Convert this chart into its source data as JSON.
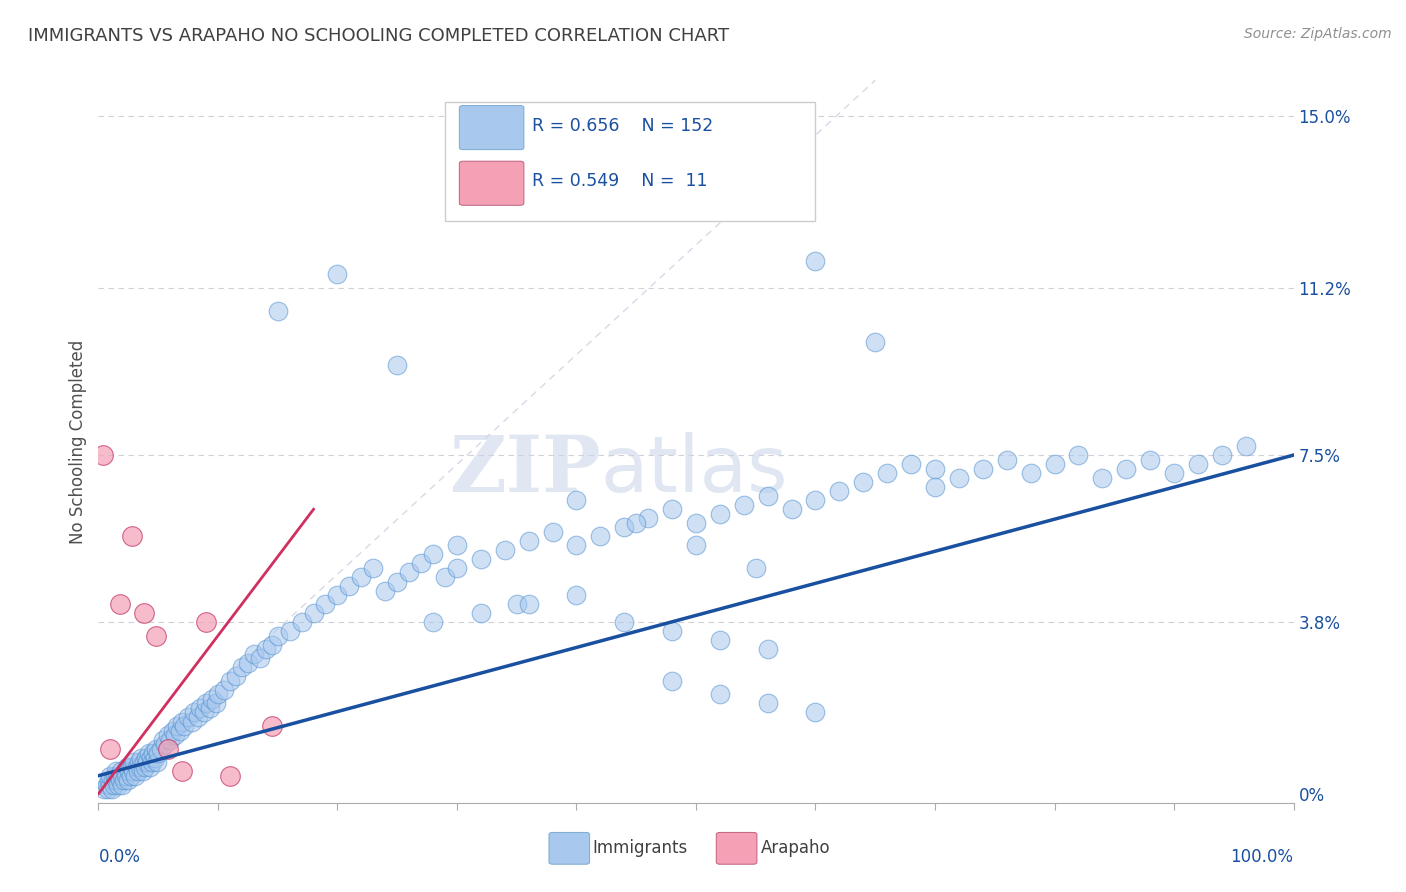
{
  "title": "IMMIGRANTS VS ARAPAHO NO SCHOOLING COMPLETED CORRELATION CHART",
  "source_text": "Source: ZipAtlas.com",
  "ylabel": "No Schooling Completed",
  "ytick_labels": [
    "0%",
    "3.8%",
    "7.5%",
    "11.2%",
    "15.0%"
  ],
  "ytick_values": [
    0.0,
    0.038,
    0.075,
    0.112,
    0.15
  ],
  "legend_blue_r": "R = 0.656",
  "legend_blue_n": "N = 152",
  "legend_pink_r": "R = 0.549",
  "legend_pink_n": "N =  11",
  "legend_label_blue": "Immigrants",
  "legend_label_pink": "Arapaho",
  "watermark_ZIP": "ZIP",
  "watermark_atlas": "atlas",
  "blue_color": "#A8C8EE",
  "pink_color": "#F4A0B5",
  "blue_line_color": "#1A50A0",
  "pink_line_color": "#D03060",
  "ref_line_color": "#D8D8E8",
  "grid_color": "#D0D0D8",
  "title_color": "#404040",
  "axis_label_color": "#505050",
  "tick_label_color": "#1A50A0",
  "source_color": "#909090",
  "legend_text_color": "#1A50A0",
  "xlim": [
    0.0,
    1.0
  ],
  "ylim": [
    -0.002,
    0.158
  ],
  "blue_line_x0": 0.0,
  "blue_line_y0": 0.004,
  "blue_line_x1": 1.0,
  "blue_line_y1": 0.075,
  "pink_line_x0": 0.0,
  "pink_line_y0": 0.0,
  "pink_line_x1": 0.18,
  "pink_line_y1": 0.063,
  "immigrants_x": [
    0.005,
    0.007,
    0.008,
    0.009,
    0.01,
    0.01,
    0.011,
    0.012,
    0.013,
    0.014,
    0.015,
    0.015,
    0.016,
    0.017,
    0.018,
    0.019,
    0.02,
    0.02,
    0.021,
    0.022,
    0.023,
    0.024,
    0.025,
    0.026,
    0.027,
    0.028,
    0.029,
    0.03,
    0.031,
    0.032,
    0.033,
    0.034,
    0.035,
    0.036,
    0.037,
    0.038,
    0.039,
    0.04,
    0.041,
    0.042,
    0.043,
    0.044,
    0.045,
    0.046,
    0.047,
    0.048,
    0.049,
    0.05,
    0.052,
    0.054,
    0.056,
    0.058,
    0.06,
    0.062,
    0.064,
    0.066,
    0.068,
    0.07,
    0.072,
    0.075,
    0.078,
    0.08,
    0.083,
    0.085,
    0.088,
    0.09,
    0.093,
    0.095,
    0.098,
    0.1,
    0.105,
    0.11,
    0.115,
    0.12,
    0.125,
    0.13,
    0.135,
    0.14,
    0.145,
    0.15,
    0.16,
    0.17,
    0.18,
    0.19,
    0.2,
    0.21,
    0.22,
    0.23,
    0.24,
    0.25,
    0.26,
    0.27,
    0.28,
    0.29,
    0.3,
    0.32,
    0.34,
    0.36,
    0.38,
    0.4,
    0.42,
    0.44,
    0.46,
    0.48,
    0.5,
    0.52,
    0.54,
    0.56,
    0.58,
    0.6,
    0.62,
    0.64,
    0.66,
    0.68,
    0.7,
    0.72,
    0.74,
    0.76,
    0.78,
    0.8,
    0.82,
    0.84,
    0.86,
    0.88,
    0.9,
    0.92,
    0.94,
    0.96,
    0.15,
    0.2,
    0.25,
    0.3,
    0.35,
    0.4,
    0.45,
    0.5,
    0.55,
    0.6,
    0.65,
    0.7,
    0.28,
    0.32,
    0.36,
    0.4,
    0.44,
    0.48,
    0.52,
    0.56,
    0.48,
    0.52,
    0.56,
    0.6
  ],
  "immigrants_y": [
    0.001,
    0.002,
    0.001,
    0.003,
    0.002,
    0.004,
    0.001,
    0.003,
    0.002,
    0.004,
    0.003,
    0.005,
    0.002,
    0.004,
    0.003,
    0.005,
    0.002,
    0.004,
    0.003,
    0.005,
    0.004,
    0.006,
    0.003,
    0.005,
    0.004,
    0.006,
    0.005,
    0.007,
    0.004,
    0.006,
    0.005,
    0.007,
    0.006,
    0.008,
    0.005,
    0.007,
    0.006,
    0.008,
    0.007,
    0.009,
    0.006,
    0.008,
    0.007,
    0.009,
    0.008,
    0.01,
    0.007,
    0.009,
    0.01,
    0.012,
    0.011,
    0.013,
    0.012,
    0.014,
    0.013,
    0.015,
    0.014,
    0.016,
    0.015,
    0.017,
    0.016,
    0.018,
    0.017,
    0.019,
    0.018,
    0.02,
    0.019,
    0.021,
    0.02,
    0.022,
    0.023,
    0.025,
    0.026,
    0.028,
    0.029,
    0.031,
    0.03,
    0.032,
    0.033,
    0.035,
    0.036,
    0.038,
    0.04,
    0.042,
    0.044,
    0.046,
    0.048,
    0.05,
    0.045,
    0.047,
    0.049,
    0.051,
    0.053,
    0.048,
    0.05,
    0.052,
    0.054,
    0.056,
    0.058,
    0.055,
    0.057,
    0.059,
    0.061,
    0.063,
    0.06,
    0.062,
    0.064,
    0.066,
    0.063,
    0.065,
    0.067,
    0.069,
    0.071,
    0.073,
    0.068,
    0.07,
    0.072,
    0.074,
    0.071,
    0.073,
    0.075,
    0.07,
    0.072,
    0.074,
    0.071,
    0.073,
    0.075,
    0.077,
    0.107,
    0.115,
    0.095,
    0.055,
    0.042,
    0.065,
    0.06,
    0.055,
    0.05,
    0.118,
    0.1,
    0.072,
    0.038,
    0.04,
    0.042,
    0.044,
    0.038,
    0.036,
    0.034,
    0.032,
    0.025,
    0.022,
    0.02,
    0.018
  ],
  "arapaho_x": [
    0.004,
    0.01,
    0.018,
    0.028,
    0.038,
    0.048,
    0.058,
    0.07,
    0.09,
    0.11,
    0.145
  ],
  "arapaho_y": [
    0.075,
    0.01,
    0.042,
    0.057,
    0.04,
    0.035,
    0.01,
    0.005,
    0.038,
    0.004,
    0.015
  ]
}
